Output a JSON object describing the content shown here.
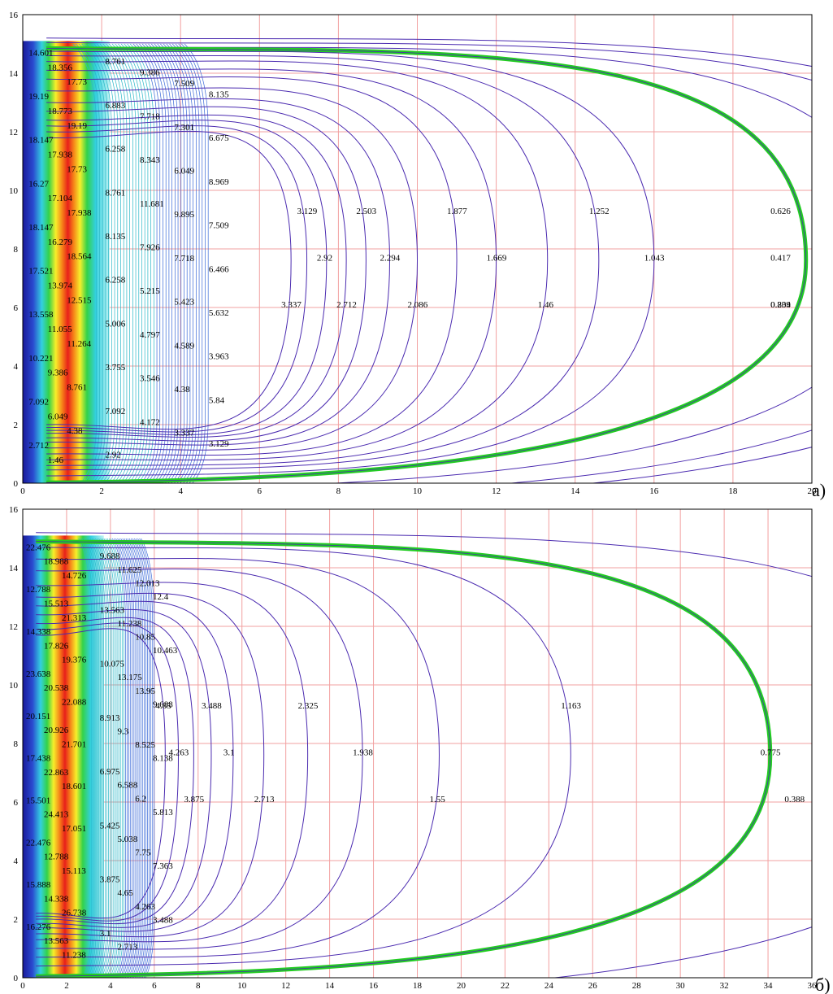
{
  "chart_data": [
    {
      "type": "contour",
      "panel_label": "a)",
      "xlim": [
        0,
        20
      ],
      "ylim": [
        0,
        16
      ],
      "x_ticks": [
        "0",
        "2",
        "4",
        "6",
        "8",
        "10",
        "12",
        "14",
        "16",
        "18",
        "20"
      ],
      "y_ticks": [
        "0",
        "2",
        "4",
        "6",
        "8",
        "10",
        "12",
        "14",
        "16"
      ],
      "grid": true,
      "inner_labels": [
        "14.601",
        "18.356",
        "17.73",
        "19.19",
        "18.773",
        "19.19",
        "18.147",
        "17.938",
        "17.73",
        "16.27",
        "17.104",
        "17.938",
        "18.147",
        "16.279",
        "18.564",
        "17.521",
        "13.974",
        "12.515",
        "13.558",
        "11.055",
        "11.264",
        "10.221",
        "9.386",
        "8.761",
        "7.092",
        "6.049",
        "4.38",
        "2.712",
        "1.46"
      ],
      "mid_labels": [
        "8.761",
        "9.386",
        "7.509",
        "8.135",
        "6.883",
        "7.718",
        "7.301",
        "6.675",
        "6.258",
        "8.343",
        "6.049",
        "8.969",
        "8.761",
        "11.681",
        "9.895",
        "7.509",
        "8.135",
        "7.926",
        "7.718",
        "6.466",
        "6.258",
        "5.215",
        "5.423",
        "5.632",
        "5.006",
        "4.797",
        "4.589",
        "3.963",
        "3.755",
        "3.546",
        "4.38",
        "5.84",
        "7.092",
        "4.172",
        "3.337",
        "3.129",
        "2.92"
      ],
      "labelled_levels": [
        "0.209",
        "0.417",
        "0.626",
        "0.834",
        "1.043",
        "1.252",
        "1.46",
        "1.669",
        "1.877",
        "2.086",
        "2.294",
        "2.503",
        "2.712",
        "2.92",
        "3.129",
        "3.337",
        "3.546",
        "3.755",
        "3.963",
        "4.172",
        "4.38",
        "4.589",
        "4.797",
        "5.006",
        "5.215",
        "5.423",
        "5.632",
        "5.84",
        "7.092"
      ],
      "level_lines": [
        {
          "value": 0.209,
          "label": "0.209",
          "y_top": 15.2,
          "y_bot": -0.8,
          "x_peak": 26.0,
          "ex_t": 0.14,
          "ex_b": 0.4
        },
        {
          "value": 0.417,
          "label": "0.417",
          "y_top": 15.05,
          "y_bot": -0.6,
          "x_peak": 24.5,
          "ex_t": 0.14,
          "ex_b": 0.4
        },
        {
          "value": 0.626,
          "label": "0.626",
          "y_top": 14.9,
          "y_bot": -0.25,
          "x_peak": 22.0,
          "ex_t": 0.14,
          "ex_b": 0.4
        },
        {
          "value": 0.834,
          "label": "0.834",
          "highlight": true,
          "y_top": 14.85,
          "y_bot": 0.02,
          "x_peak": 19.85,
          "ex_t": 0.18,
          "ex_b": 0.45
        },
        {
          "value": 1.043,
          "label": "1.043",
          "y_top": 14.75,
          "y_bot": 0.25,
          "x_peak": 16.0,
          "ex_t": 0.12,
          "ex_b": 0.25
        },
        {
          "value": 1.252,
          "label": "1.252",
          "y_top": 14.6,
          "y_bot": 0.45,
          "x_peak": 14.6,
          "ex_t": 0.12,
          "ex_b": 0.22
        },
        {
          "value": 1.46,
          "label": "1.46",
          "y_top": 14.4,
          "y_bot": 0.6,
          "x_peak": 13.3,
          "ex_t": 0.1,
          "ex_b": 0.18
        },
        {
          "value": 1.669,
          "label": "1.669",
          "y_top": 14.1,
          "y_bot": 0.8,
          "x_peak": 12.0,
          "ex_t": 0.08,
          "ex_b": 0.14
        },
        {
          "value": 1.877,
          "label": "1.877",
          "y_top": 13.8,
          "y_bot": 1.0,
          "x_peak": 11.0,
          "ex_t": 0.06,
          "ex_b": 0.1
        },
        {
          "value": 2.086,
          "label": "2.086",
          "y_top": 13.4,
          "y_bot": 1.2,
          "x_peak": 10.0,
          "ex_t": 0.05,
          "ex_b": 0.08
        },
        {
          "value": 2.294,
          "label": "2.294",
          "y_top": 13.0,
          "y_bot": 1.4,
          "x_peak": 9.3,
          "ex_t": 0.04,
          "ex_b": 0.06
        },
        {
          "value": 2.503,
          "label": "2.503",
          "y_top": 12.7,
          "y_bot": 1.55,
          "x_peak": 8.7,
          "ex_t": 0.03,
          "ex_b": 0.05
        },
        {
          "value": 2.712,
          "label": "2.712",
          "y_top": 12.4,
          "y_bot": 1.7,
          "x_peak": 8.2,
          "ex_t": 0.03,
          "ex_b": 0.04
        },
        {
          "value": 2.92,
          "label": "2.92",
          "y_top": 12.2,
          "y_bot": 1.8,
          "x_peak": 7.7,
          "ex_t": 0.02,
          "ex_b": 0.03
        },
        {
          "value": 3.129,
          "label": "3.129",
          "y_top": 12.0,
          "y_bot": 1.9,
          "x_peak": 7.2,
          "ex_t": 0.02,
          "ex_b": 0.03
        },
        {
          "value": 3.337,
          "label": "3.337",
          "y_top": 11.8,
          "y_bot": 2.0,
          "x_peak": 6.8,
          "ex_t": 0.02,
          "ex_b": 0.03
        }
      ]
    },
    {
      "type": "contour",
      "panel_label": "б)",
      "xlim": [
        0,
        36
      ],
      "ylim": [
        0,
        16
      ],
      "x_ticks": [
        "0",
        "2",
        "4",
        "6",
        "8",
        "10",
        "12",
        "14",
        "16",
        "18",
        "20",
        "22",
        "24",
        "26",
        "28",
        "30",
        "32",
        "34",
        "36"
      ],
      "y_ticks": [
        "0",
        "2",
        "4",
        "6",
        "8",
        "10",
        "12",
        "14",
        "16"
      ],
      "grid": true,
      "inner_labels": [
        "22.476",
        "18.988",
        "14.726",
        "12.788",
        "15.513",
        "21.313",
        "14.338",
        "17.826",
        "19.376",
        "23.638",
        "20.538",
        "22.088",
        "20.151",
        "20.926",
        "21.701",
        "17.438",
        "22.863",
        "18.601",
        "15.501",
        "24.413",
        "17.051",
        "22.476",
        "12.788",
        "15.113",
        "15.888",
        "14.338",
        "26.738",
        "16.276",
        "13.563",
        "11.238"
      ],
      "mid_labels": [
        "9.688",
        "11.625",
        "12.013",
        "12.4",
        "13.563",
        "11.238",
        "10.85",
        "10.463",
        "10.075",
        "13.175",
        "13.95",
        "9.688",
        "8.913",
        "9.3",
        "8.525",
        "8.138",
        "6.975",
        "6.588",
        "6.2",
        "5.813",
        "5.425",
        "5.038",
        "7.75",
        "7.363",
        "3.875",
        "4.65",
        "4.263",
        "3.488",
        "3.1",
        "2.713"
      ],
      "labelled_levels": [
        "0.388",
        "0.775",
        "1.163",
        "1.55",
        "1.938",
        "2.325",
        "2.713",
        "3.1",
        "3.488",
        "3.875",
        "4.263",
        "4.65",
        "5.038",
        "5.425",
        "5.813",
        "6.2"
      ],
      "level_lines": [
        {
          "value": 0.388,
          "label": "0.388",
          "y_top": 15.2,
          "y_bot": -0.8,
          "x_peak": 44.0,
          "ex_t": 0.18,
          "ex_b": 0.4
        },
        {
          "value": 0.775,
          "label": "0.775",
          "highlight": true,
          "y_top": 14.9,
          "y_bot": 0.05,
          "x_peak": 34.1,
          "ex_t": 0.22,
          "ex_b": 0.4
        },
        {
          "value": 1.163,
          "label": "1.163",
          "y_top": 14.7,
          "y_bot": 0.4,
          "x_peak": 25.0,
          "ex_t": 0.14,
          "ex_b": 0.25
        },
        {
          "value": 1.55,
          "label": "1.55",
          "y_top": 14.3,
          "y_bot": 0.7,
          "x_peak": 19.0,
          "ex_t": 0.1,
          "ex_b": 0.16
        },
        {
          "value": 1.938,
          "label": "1.938",
          "y_top": 13.9,
          "y_bot": 1.0,
          "x_peak": 15.5,
          "ex_t": 0.07,
          "ex_b": 0.12
        },
        {
          "value": 2.325,
          "label": "2.325",
          "y_top": 13.4,
          "y_bot": 1.3,
          "x_peak": 13.0,
          "ex_t": 0.05,
          "ex_b": 0.08
        },
        {
          "value": 2.713,
          "label": "2.713",
          "y_top": 13.0,
          "y_bot": 1.5,
          "x_peak": 11.0,
          "ex_t": 0.04,
          "ex_b": 0.06
        },
        {
          "value": 3.1,
          "label": "3.1",
          "y_top": 12.7,
          "y_bot": 1.7,
          "x_peak": 9.6,
          "ex_t": 0.03,
          "ex_b": 0.05
        },
        {
          "value": 3.488,
          "label": "3.488",
          "y_top": 12.4,
          "y_bot": 1.85,
          "x_peak": 8.6,
          "ex_t": 0.03,
          "ex_b": 0.04
        },
        {
          "value": 3.875,
          "label": "3.875",
          "y_top": 12.1,
          "y_bot": 2.0,
          "x_peak": 7.8,
          "ex_t": 0.02,
          "ex_b": 0.03
        },
        {
          "value": 4.263,
          "label": "4.263",
          "y_top": 11.9,
          "y_bot": 2.1,
          "x_peak": 7.1,
          "ex_t": 0.02,
          "ex_b": 0.03
        },
        {
          "value": 4.65,
          "label": "4.65",
          "y_top": 11.7,
          "y_bot": 2.2,
          "x_peak": 6.5,
          "ex_t": 0.02,
          "ex_b": 0.03
        }
      ]
    }
  ],
  "colors": {
    "grid": "#f2a0a0",
    "contour": "#4b2bb0",
    "highlight": "#22cc22",
    "cold": "#1a1a9a",
    "warm": "#e8201a",
    "mid": "#22c8c8"
  }
}
